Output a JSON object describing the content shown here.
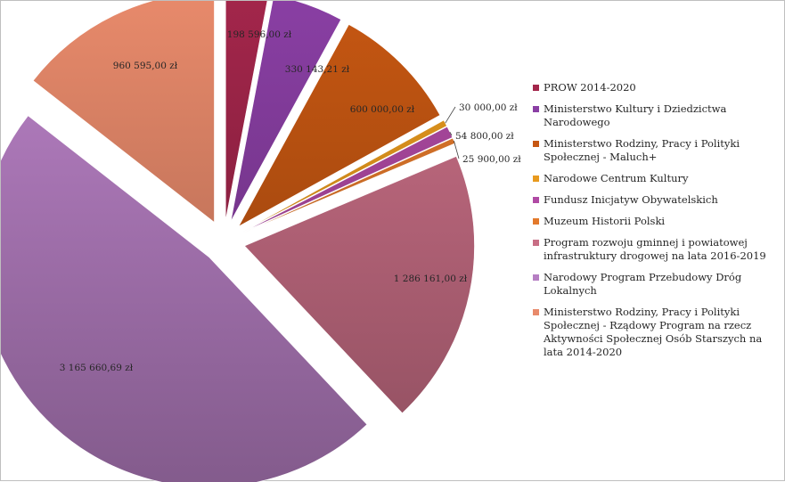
{
  "chart_data": {
    "type": "pie",
    "title": "",
    "start_angle_deg": 0,
    "direction": "clockwise",
    "currency": "zł",
    "legend_position": "right",
    "slices": [
      {
        "name": "PROW 2014-2020",
        "value": 198596.0,
        "label": "198 596,00 zł",
        "color": "#a3264b",
        "exploded": true
      },
      {
        "name": "Ministerstwo Kultury i Dziedzictwa Narodowego",
        "value": 330143.21,
        "label": "330 143,21 zł",
        "color": "#8a3fa4",
        "exploded": true
      },
      {
        "name": "Ministerstwo Rodziny, Pracy i Polityki Społecznej - Maluch+",
        "value": 600000.0,
        "label": "600 000,00 zł",
        "color": "#c65712",
        "exploded": true
      },
      {
        "name": "Narodowe Centrum Kultury",
        "value": 30000.0,
        "label": "30 000,00 zł",
        "color": "#e89a1e",
        "exploded": true
      },
      {
        "name": "Fundusz Inicjatyw Obywatelskich",
        "value": 54800.0,
        "label": "54 800,00 zł",
        "color": "#b04aa4",
        "exploded": true
      },
      {
        "name": "Muzeum Historii Polski",
        "value": 25900.0,
        "label": "25 900,00 zł",
        "color": "#e3792b",
        "exploded": true
      },
      {
        "name": "Program rozwoju gminnej i powiatowej infrastruktury drogowej na lata 2016-2019",
        "value": 1286161.0,
        "label": "1 286 161,00 zł",
        "color": "#c86e85",
        "exploded": true
      },
      {
        "name": "Narodowy Program Przebudowy Dróg Lokalnych",
        "value": 3165660.69,
        "label": "3 165 660,69 zł",
        "color": "#b67fc3",
        "exploded": true
      },
      {
        "name": "Ministerstwo Rodziny, Pracy i Polityki Społecznej - Rządowy Program na rzecz Aktywności Społecznej Osób Starszych na lata 2014-2020",
        "value": 960595.0,
        "label": "960 595,00 zł",
        "color": "#e88a6b",
        "exploded": true
      }
    ]
  }
}
